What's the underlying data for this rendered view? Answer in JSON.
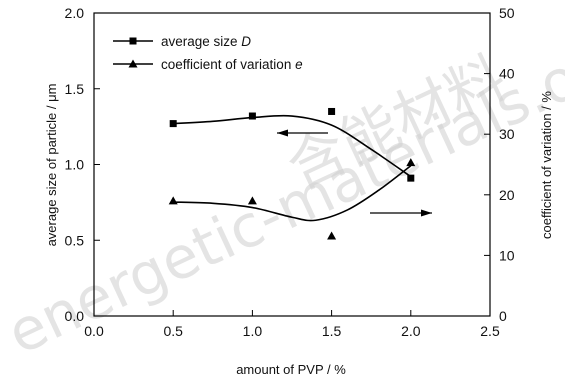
{
  "chart_data": {
    "type": "line",
    "x": [
      0.5,
      1.0,
      1.5,
      2.0
    ],
    "xlabel": "amount of PVP / %",
    "ylabel": "average size of particle / μm",
    "y2label": "coefficient of variation / %",
    "xlim": [
      0.0,
      2.5
    ],
    "ylim": [
      0.0,
      2.0
    ],
    "y2lim": [
      0,
      50
    ],
    "xticks": [
      "0.0",
      "0.5",
      "1.0",
      "1.5",
      "2.0",
      "2.5"
    ],
    "yticks": [
      "0.0",
      "0.5",
      "1.0",
      "1.5",
      "2.0"
    ],
    "y2ticks": [
      "0",
      "10",
      "20",
      "30",
      "40",
      "50"
    ],
    "grid": false,
    "legend_position": "top-left",
    "series": [
      {
        "name_prefix": "average size ",
        "name_symbol": "D",
        "marker": "square",
        "axis": "left",
        "values": [
          1.27,
          1.32,
          1.35,
          0.91
        ],
        "fit_curve": [
          [
            0.5,
            1.27
          ],
          [
            0.75,
            1.285
          ],
          [
            1.0,
            1.31
          ],
          [
            1.25,
            1.32
          ],
          [
            1.5,
            1.26
          ],
          [
            1.75,
            1.1
          ],
          [
            2.0,
            0.92
          ]
        ],
        "arrow_direction": "left"
      },
      {
        "name_prefix": "coefficient of variation ",
        "name_symbol": "e",
        "marker": "triangle",
        "axis": "right",
        "values": [
          19,
          19,
          13.2,
          25.3
        ],
        "fit_curve": [
          [
            0.5,
            18.8
          ],
          [
            0.75,
            18.6
          ],
          [
            1.0,
            17.9
          ],
          [
            1.25,
            16.3
          ],
          [
            1.4,
            15.8
          ],
          [
            1.6,
            17.5
          ],
          [
            1.8,
            20.8
          ],
          [
            2.0,
            24.8
          ]
        ],
        "arrow_direction": "right"
      }
    ]
  },
  "watermark": {
    "latin": "energetic-materials.org.cn",
    "chinese": "含能材料"
  },
  "colors": {
    "line": "#000000",
    "watermark": "#cfcfcf"
  }
}
